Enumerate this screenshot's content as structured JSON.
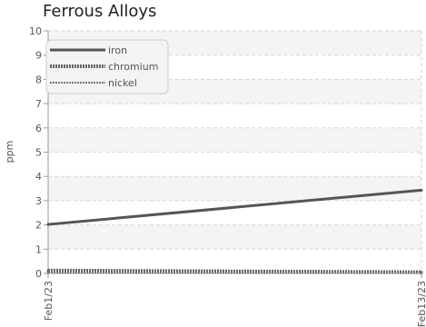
{
  "chart_data": {
    "type": "line",
    "title": "Ferrous Alloys",
    "ylabel": "ppm",
    "xlabel": "",
    "x": [
      "Feb1/23",
      "Feb13/23"
    ],
    "ylim": [
      0,
      10
    ],
    "yticks": [
      0,
      1,
      2,
      3,
      4,
      5,
      6,
      7,
      8,
      9,
      10
    ],
    "grid": true,
    "legend_position": "top-left",
    "series": [
      {
        "name": "iron",
        "values": [
          2.02,
          3.43
        ],
        "color": "#555555",
        "style": "solid"
      },
      {
        "name": "chromium",
        "values": [
          0.12,
          0.05
        ],
        "color": "#666666",
        "style": "dotted"
      },
      {
        "name": "nickel",
        "values": [
          0.04,
          0.02
        ],
        "color": "#777777",
        "style": "thin-dotted"
      }
    ]
  }
}
